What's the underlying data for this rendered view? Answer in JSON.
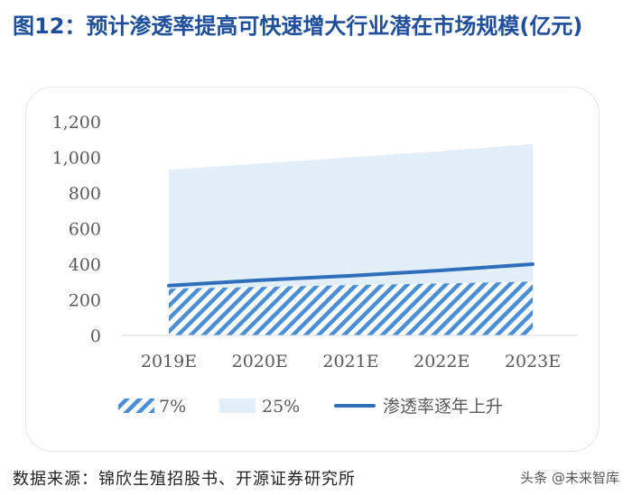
{
  "figure": {
    "title": "图12：预计渗透率提高可快速增大行业潜在市场规模(亿元)",
    "source": "数据来源：锦欣生殖招股书、开源证券研究所",
    "watermark": "头条 @未来智库"
  },
  "colors": {
    "title": "#1f4e9a",
    "hatch": "#4a8fd6",
    "area25": "#e2eef8",
    "line": "#2f6fba",
    "axis_text": "#595959"
  },
  "chart_data": {
    "type": "area",
    "title": "",
    "xlabel": "",
    "ylabel": "",
    "categories": [
      "2019E",
      "2020E",
      "2021E",
      "2022E",
      "2023E"
    ],
    "ylim": [
      0,
      1200
    ],
    "yticks": [
      "0",
      "200",
      "400",
      "600",
      "800",
      "1,000",
      "1,200"
    ],
    "grid": false,
    "legend_position": "bottom",
    "series": [
      {
        "name": "7%",
        "kind": "hatched-area",
        "values": [
          262,
          272,
          282,
          292,
          302
        ]
      },
      {
        "name": "25%",
        "kind": "area",
        "values": [
          930,
          965,
          1000,
          1035,
          1075
        ]
      },
      {
        "name": "渗透率逐年上升",
        "kind": "line",
        "values": [
          280,
          310,
          335,
          365,
          400
        ]
      }
    ]
  }
}
